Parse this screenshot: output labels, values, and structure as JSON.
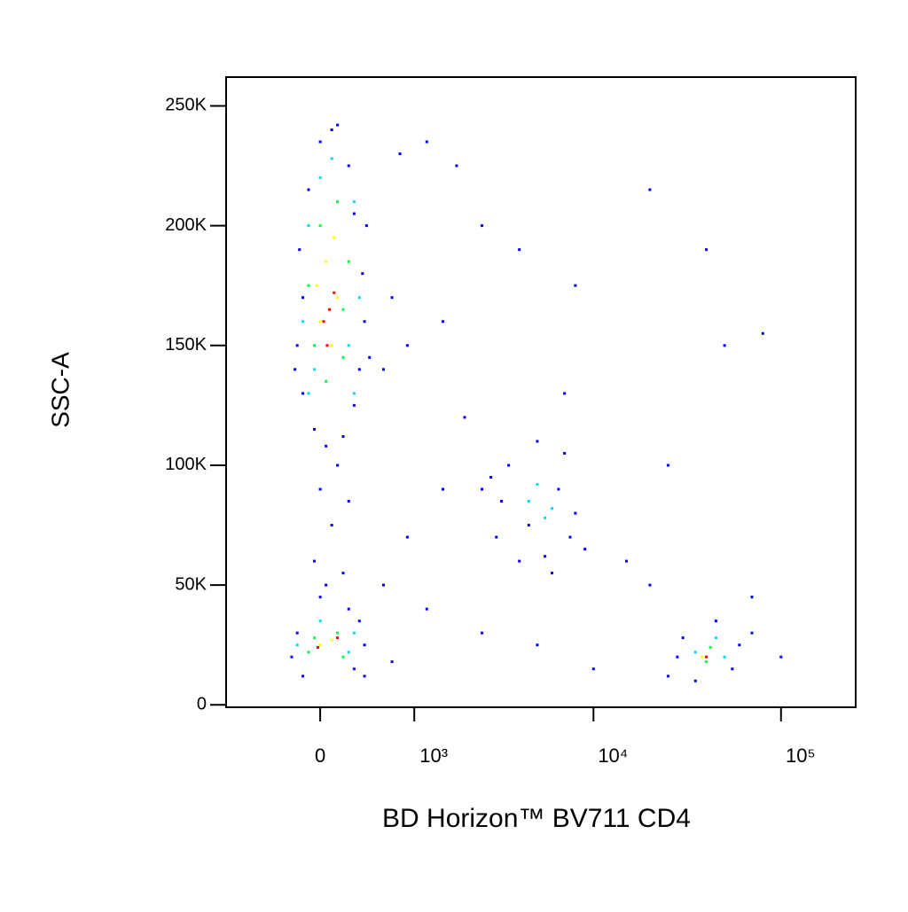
{
  "chart_data": {
    "type": "scatter",
    "x_label": "BD Horizon™ BV711 CD4",
    "y_label": "SSC-A",
    "xscale": "biexponential",
    "xlim": [
      -1000,
      250000
    ],
    "ylim": [
      -1000,
      262000
    ],
    "xticks": [
      0,
      {
        "value": 1000,
        "label": "10³"
      },
      {
        "value": 10000,
        "label": "10⁴"
      },
      {
        "value": 100000,
        "label": "10⁵"
      }
    ],
    "yticks": [
      0,
      {
        "value": 50000,
        "label": "50K"
      },
      {
        "value": 100000,
        "label": "100K"
      },
      {
        "value": 150000,
        "label": "150K"
      },
      {
        "value": 200000,
        "label": "200K"
      },
      {
        "value": 250000,
        "label": "250K"
      }
    ],
    "series": [
      {
        "color": "#0000ff",
        "x": [
          -150,
          -50,
          50,
          200,
          300,
          350,
          -200,
          400,
          380,
          -180,
          300,
          -100,
          250,
          0,
          150,
          100,
          -150,
          420,
          -220,
          450,
          700,
          900,
          600,
          1500,
          2500,
          800,
          1200,
          1800,
          4000,
          8000,
          20000,
          40000,
          50000,
          80000,
          7000,
          2000,
          1500,
          900,
          600,
          1200,
          2500,
          15000,
          25000,
          20000,
          70000,
          100000,
          5000,
          10000,
          700,
          400,
          0,
          100,
          -50,
          200,
          50,
          150,
          250,
          -250,
          -200,
          300,
          350,
          -150,
          250,
          0,
          400,
          2500,
          3000,
          3500,
          4000,
          5000,
          6000,
          7000,
          8000,
          9000,
          3200,
          4500,
          6500,
          7500,
          2800,
          5500,
          25000,
          30000,
          45000,
          60000,
          70000,
          35000,
          55000,
          28000
        ],
        "y": [
          130000,
          115000,
          108000,
          112000,
          125000,
          140000,
          150000,
          160000,
          180000,
          190000,
          205000,
          215000,
          225000,
          235000,
          242000,
          240000,
          170000,
          200000,
          140000,
          145000,
          170000,
          150000,
          140000,
          160000,
          200000,
          230000,
          235000,
          225000,
          190000,
          175000,
          215000,
          190000,
          150000,
          155000,
          130000,
          120000,
          90000,
          70000,
          50000,
          40000,
          30000,
          60000,
          100000,
          50000,
          45000,
          20000,
          25000,
          15000,
          18000,
          12000,
          90000,
          75000,
          60000,
          55000,
          50000,
          100000,
          85000,
          20000,
          30000,
          15000,
          35000,
          12000,
          40000,
          45000,
          25000,
          90000,
          70000,
          100000,
          60000,
          110000,
          55000,
          105000,
          80000,
          65000,
          85000,
          75000,
          90000,
          70000,
          95000,
          62000,
          12000,
          28000,
          35000,
          25000,
          30000,
          10000,
          15000,
          20000
        ]
      },
      {
        "color": "#00d8ff",
        "x": [
          -100,
          300,
          -150,
          350,
          -100,
          300,
          100,
          0,
          -50,
          250,
          4500,
          5500,
          5000,
          6000,
          -200,
          250,
          0,
          300,
          35000,
          50000,
          45000
        ],
        "y": [
          130000,
          130000,
          160000,
          170000,
          200000,
          210000,
          228000,
          220000,
          140000,
          150000,
          85000,
          78000,
          92000,
          82000,
          25000,
          22000,
          35000,
          30000,
          22000,
          20000,
          28000
        ]
      },
      {
        "color": "#00ff40",
        "x": [
          -50,
          200,
          -100,
          250,
          0,
          150,
          50,
          200,
          -100,
          150,
          200,
          -50,
          40000,
          42000
        ],
        "y": [
          150000,
          145000,
          175000,
          185000,
          200000,
          210000,
          135000,
          165000,
          22000,
          30000,
          20000,
          28000,
          18000,
          24000
        ]
      },
      {
        "color": "#ffff00",
        "x": [
          0,
          150,
          50,
          100,
          -30,
          120,
          0,
          100,
          38000
        ],
        "y": [
          160000,
          170000,
          185000,
          150000,
          175000,
          195000,
          25000,
          27000,
          20000
        ]
      },
      {
        "color": "#ff0000",
        "x": [
          80,
          30,
          120,
          60,
          150,
          -20,
          40000
        ],
        "y": [
          165000,
          160000,
          172000,
          150000,
          28000,
          24000,
          20000
        ]
      }
    ]
  }
}
